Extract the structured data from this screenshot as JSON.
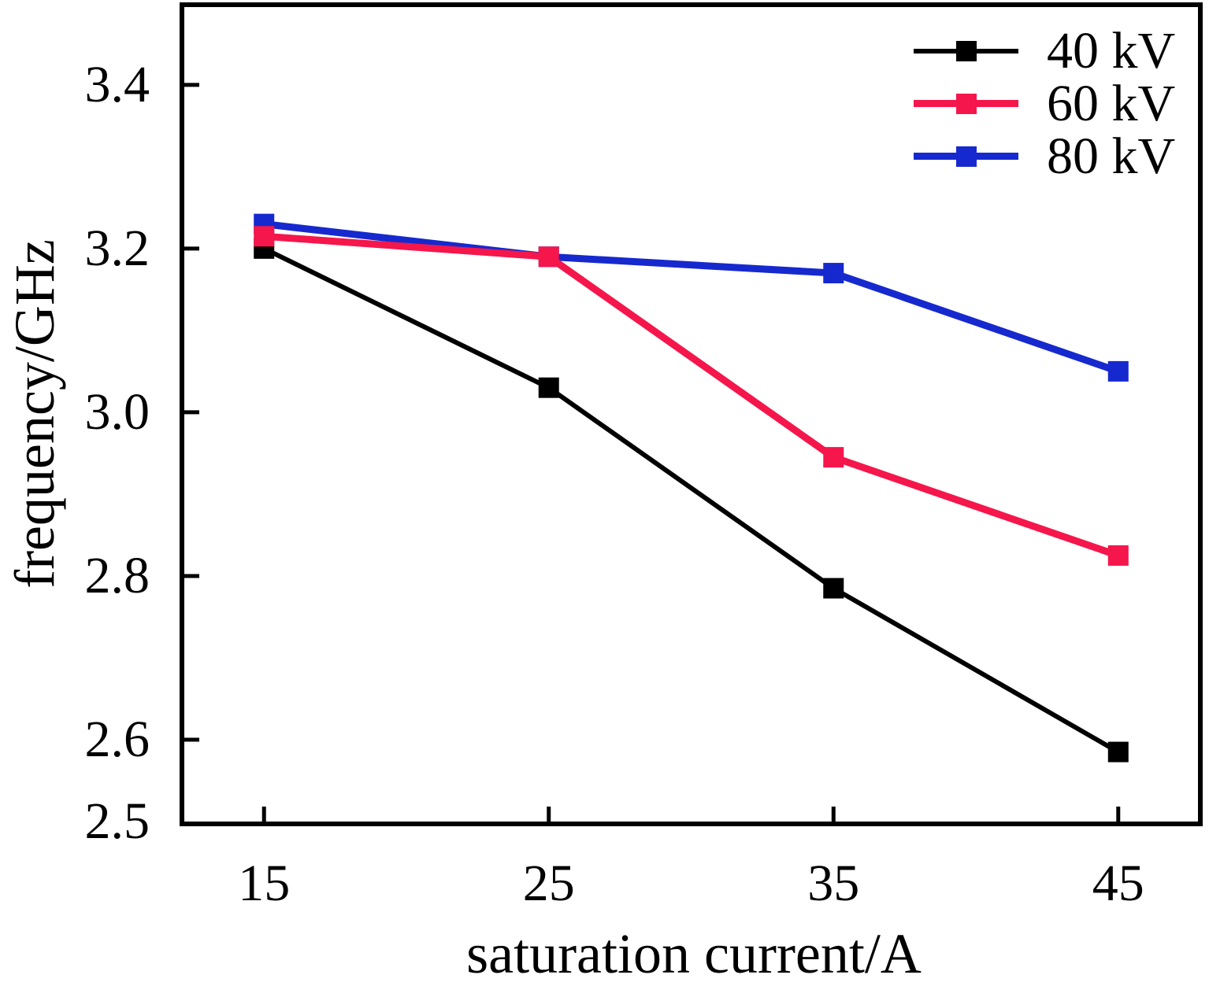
{
  "chart_data": {
    "type": "line",
    "title": "",
    "xlabel": "saturation current/A",
    "ylabel": "frequency/GHz",
    "x": [
      15,
      25,
      35,
      45
    ],
    "x_tick_labels": [
      "15",
      "25",
      "35",
      "45"
    ],
    "y_ticks": [
      2.5,
      2.6,
      2.8,
      3.0,
      3.2,
      3.4
    ],
    "y_tick_labels": [
      "2.5",
      "2.6",
      "2.8",
      "3.0",
      "3.2",
      "3.4"
    ],
    "xlim": [
      12.2,
      47.8
    ],
    "ylim": [
      2.5,
      3.495
    ],
    "grid": false,
    "legend_position": "top-right-inside",
    "draw_order": [
      0,
      2,
      1
    ],
    "axis_color": "#000000",
    "background": "#ffffff",
    "series": [
      {
        "name": "40 kV",
        "color": "#000000",
        "values": [
          3.2,
          3.03,
          2.785,
          2.585
        ],
        "line_width": 6,
        "marker": "square",
        "marker_size": 26
      },
      {
        "name": "60 kV",
        "color": "#F5164B",
        "values": [
          3.215,
          3.19,
          2.945,
          2.825
        ],
        "line_width": 9,
        "marker": "square",
        "marker_size": 26
      },
      {
        "name": "80 kV",
        "color": "#1629CE",
        "values": [
          3.23,
          3.19,
          3.17,
          3.05
        ],
        "line_width": 9,
        "marker": "square",
        "marker_size": 26
      }
    ]
  }
}
